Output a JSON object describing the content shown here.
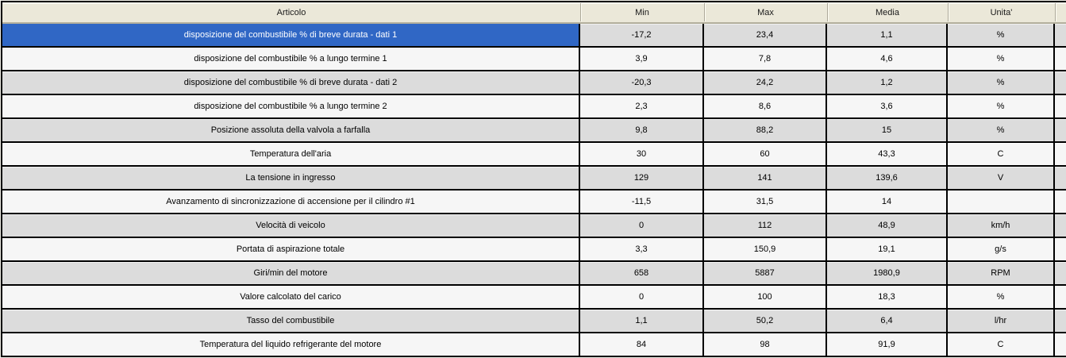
{
  "table": {
    "columns": [
      {
        "key": "articolo",
        "label": "Articolo"
      },
      {
        "key": "min",
        "label": "Min"
      },
      {
        "key": "max",
        "label": "Max"
      },
      {
        "key": "media",
        "label": "Media"
      },
      {
        "key": "unita",
        "label": "Unita'"
      }
    ],
    "selected_row_index": 0,
    "rows": [
      {
        "articolo": "disposizione del combustibile % di breve durata - dati 1",
        "min": "-17,2",
        "max": "23,4",
        "media": "1,1",
        "unita": "%"
      },
      {
        "articolo": "disposizione del combustibile % a lungo termine 1",
        "min": "3,9",
        "max": "7,8",
        "media": "4,6",
        "unita": "%"
      },
      {
        "articolo": "disposizione del combustibile % di breve durata - dati 2",
        "min": "-20,3",
        "max": "24,2",
        "media": "1,2",
        "unita": "%"
      },
      {
        "articolo": "disposizione del combustibile % a lungo termine 2",
        "min": "2,3",
        "max": "8,6",
        "media": "3,6",
        "unita": "%"
      },
      {
        "articolo": "Posizione assoluta della valvola a farfalla",
        "min": "9,8",
        "max": "88,2",
        "media": "15",
        "unita": "%"
      },
      {
        "articolo": "Temperatura dell'aria",
        "min": "30",
        "max": "60",
        "media": "43,3",
        "unita": "C"
      },
      {
        "articolo": "La tensione in ingresso",
        "min": "129",
        "max": "141",
        "media": "139,6",
        "unita": "V"
      },
      {
        "articolo": "Avanzamento di sincronizzazione di accensione per il cilindro #1",
        "min": "-11,5",
        "max": "31,5",
        "media": "14",
        "unita": ""
      },
      {
        "articolo": "Velocità di veicolo",
        "min": "0",
        "max": "112",
        "media": "48,9",
        "unita": "km/h"
      },
      {
        "articolo": "Portata di aspirazione totale",
        "min": "3,3",
        "max": "150,9",
        "media": "19,1",
        "unita": "g/s"
      },
      {
        "articolo": "Giri/min del motore",
        "min": "658",
        "max": "5887",
        "media": "1980,9",
        "unita": "RPM"
      },
      {
        "articolo": "Valore calcolato del carico",
        "min": "0",
        "max": "100",
        "media": "18,3",
        "unita": "%"
      },
      {
        "articolo": "Tasso del combustibile",
        "min": "1,1",
        "max": "50,2",
        "media": "6,4",
        "unita": "l/hr"
      },
      {
        "articolo": "Temperatura del liquido refrigerante del motore",
        "min": "84",
        "max": "98",
        "media": "91,9",
        "unita": "C"
      }
    ],
    "colors": {
      "selection_bg": "#3067c5",
      "selection_text": "#ffffff",
      "header_bg": "#ebe8d9",
      "row_odd_bg": "#dcdcdc",
      "row_even_bg": "#f6f6f6",
      "grid_line": "#000000"
    }
  }
}
